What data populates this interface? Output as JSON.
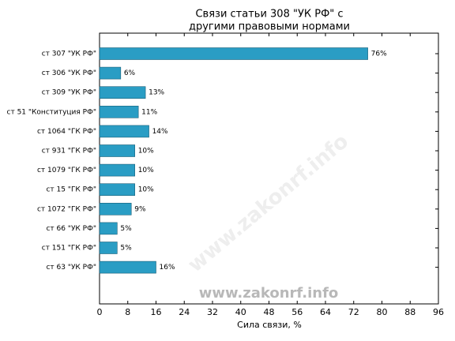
{
  "chart_data": {
    "type": "barh",
    "title": [
      "Связи статьи 308 \"УК РФ\" с",
      "другими правовыми нормами"
    ],
    "xlabel": "Сила связи, %",
    "watermark": "www.zakonrf.info",
    "categories": [
      "ст 307 \"УК РФ\"",
      "ст 306 \"УК РФ\"",
      "ст 309 \"УК РФ\"",
      "ст 51 \"Конституция РФ\"",
      "ст 1064 \"ГК РФ\"",
      "ст 931 \"ГК РФ\"",
      "ст 1079 \"ГК РФ\"",
      "ст 15 \"ГК РФ\"",
      "ст 1072 \"ГК РФ\"",
      "ст 66 \"УК РФ\"",
      "ст 151 \"ГК РФ\"",
      "ст 63 \"УК РФ\""
    ],
    "values": [
      76,
      6,
      13,
      11,
      14,
      10,
      10,
      10,
      9,
      5,
      5,
      16
    ],
    "value_labels": [
      "76%",
      "6%",
      "13%",
      "11%",
      "14%",
      "10%",
      "10%",
      "10%",
      "9%",
      "5%",
      "5%",
      "16%"
    ],
    "color": "#2a9dc4",
    "xlim": [
      0,
      96
    ],
    "xticks": [
      0,
      8,
      16,
      24,
      32,
      40,
      48,
      56,
      64,
      72,
      80,
      88,
      96
    ]
  }
}
